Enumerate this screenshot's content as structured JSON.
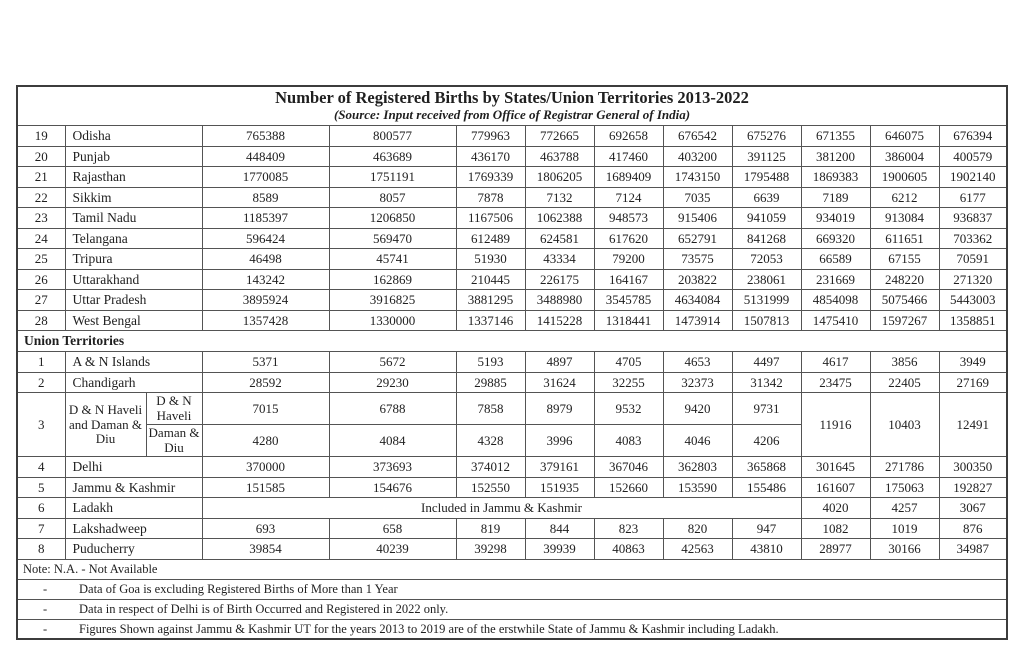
{
  "page": {
    "title": "Number of Registered Births by States/Union Territories 2013-2022",
    "source_line": "(Source: Input received from Office of Registrar General of India)"
  },
  "table": {
    "state_rows": [
      {
        "sn": "19",
        "name": "Odisha",
        "values": [
          "765388",
          "800577",
          "779963",
          "772665",
          "692658",
          "676542",
          "675276",
          "671355",
          "646075",
          "676394"
        ]
      },
      {
        "sn": "20",
        "name": "Punjab",
        "values": [
          "448409",
          "463689",
          "436170",
          "463788",
          "417460",
          "403200",
          "391125",
          "381200",
          "386004",
          "400579"
        ]
      },
      {
        "sn": "21",
        "name": "Rajasthan",
        "values": [
          "1770085",
          "1751191",
          "1769339",
          "1806205",
          "1689409",
          "1743150",
          "1795488",
          "1869383",
          "1900605",
          "1902140"
        ]
      },
      {
        "sn": "22",
        "name": "Sikkim",
        "values": [
          "8589",
          "8057",
          "7878",
          "7132",
          "7124",
          "7035",
          "6639",
          "7189",
          "6212",
          "6177"
        ]
      },
      {
        "sn": "23",
        "name": "Tamil Nadu",
        "values": [
          "1185397",
          "1206850",
          "1167506",
          "1062388",
          "948573",
          "915406",
          "941059",
          "934019",
          "913084",
          "936837"
        ]
      },
      {
        "sn": "24",
        "name": "Telangana",
        "values": [
          "596424",
          "569470",
          "612489",
          "624581",
          "617620",
          "652791",
          "841268",
          "669320",
          "611651",
          "703362"
        ]
      },
      {
        "sn": "25",
        "name": "Tripura",
        "values": [
          "46498",
          "45741",
          "51930",
          "43334",
          "79200",
          "73575",
          "72053",
          "66589",
          "67155",
          "70591"
        ]
      },
      {
        "sn": "26",
        "name": "Uttarakhand",
        "values": [
          "143242",
          "162869",
          "210445",
          "226175",
          "164167",
          "203822",
          "238061",
          "231669",
          "248220",
          "271320"
        ]
      },
      {
        "sn": "27",
        "name": "Uttar Pradesh",
        "values": [
          "3895924",
          "3916825",
          "3881295",
          "3488980",
          "3545785",
          "4634084",
          "5131999",
          "4854098",
          "5075466",
          "5443003"
        ]
      },
      {
        "sn": "28",
        "name": "West Bengal",
        "values": [
          "1357428",
          "1330000",
          "1337146",
          "1415228",
          "1318441",
          "1473914",
          "1507813",
          "1475410",
          "1597267",
          "1358851"
        ]
      }
    ],
    "section_header": "Union Territories",
    "ut_rows": [
      {
        "type": "normal",
        "sn": "1",
        "name": "A & N Islands",
        "values": [
          "5371",
          "5672",
          "5193",
          "4897",
          "4705",
          "4653",
          "4497",
          "4617",
          "3856",
          "3949"
        ]
      },
      {
        "type": "normal",
        "sn": "2",
        "name": "Chandigarh",
        "values": [
          "28592",
          "29230",
          "29885",
          "31624",
          "32255",
          "32373",
          "31342",
          "23475",
          "22405",
          "27169"
        ]
      },
      {
        "type": "split",
        "sn": "3",
        "name_main": "D & N Haveli and Daman & Diu",
        "sub_rows": [
          {
            "name": "D & N Haveli",
            "values": [
              "7015",
              "6788",
              "7858",
              "8979",
              "9532",
              "9420",
              "9731"
            ]
          },
          {
            "name": "Daman & Diu",
            "values": [
              "4280",
              "4084",
              "4328",
              "3996",
              "4083",
              "4046",
              "4206"
            ]
          }
        ],
        "merged_values": [
          "11916",
          "10403",
          "12491"
        ]
      },
      {
        "type": "normal",
        "sn": "4",
        "name": "Delhi",
        "values": [
          "370000",
          "373693",
          "374012",
          "379161",
          "367046",
          "362803",
          "365868",
          "301645",
          "271786",
          "300350"
        ]
      },
      {
        "type": "normal",
        "sn": "5",
        "name": "Jammu & Kashmir",
        "values": [
          "151585",
          "154676",
          "152550",
          "151935",
          "152660",
          "153590",
          "155486",
          "161607",
          "175063",
          "192827"
        ]
      },
      {
        "type": "span",
        "sn": "6",
        "name": "Ladakh",
        "span_text": "Included in Jammu & Kashmir",
        "span_cols": 7,
        "values": [
          "4020",
          "4257",
          "3067"
        ]
      },
      {
        "type": "normal",
        "sn": "7",
        "name": "Lakshadweep",
        "values": [
          "693",
          "658",
          "819",
          "844",
          "823",
          "820",
          "947",
          "1082",
          "1019",
          "876"
        ]
      },
      {
        "type": "normal",
        "sn": "8",
        "name": "Puducherry",
        "values": [
          "39854",
          "40239",
          "39298",
          "39939",
          "40863",
          "42563",
          "43810",
          "28977",
          "30166",
          "34987"
        ]
      }
    ]
  },
  "notes": {
    "na_line": "Note: N.A. - Not Available",
    "bullets": [
      {
        "marker": "-",
        "text": "Data of Goa is excluding Registered Births of More than 1 Year"
      },
      {
        "marker": "-",
        "text": "Data in respect of Delhi is of Birth Occurred and Registered in 2022 only."
      },
      {
        "marker": "-",
        "text": "Figures Shown against Jammu & Kashmir UT for the years 2013 to 2019 are of the erstwhile State of Jammu & Kashmir including Ladakh."
      }
    ]
  }
}
